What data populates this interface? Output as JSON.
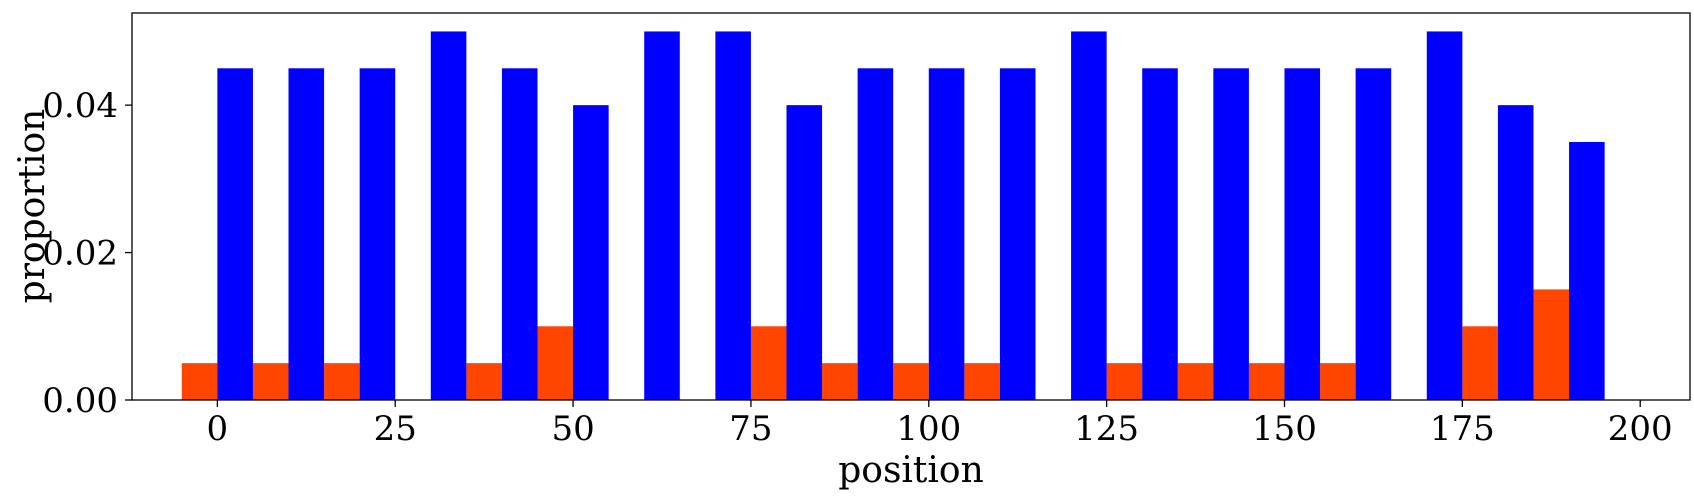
{
  "chart_data": {
    "type": "bar",
    "title": "",
    "xlabel": "position",
    "ylabel": "proportion",
    "xlim": [
      -12,
      207
    ],
    "ylim": [
      0,
      0.0525
    ],
    "grid": false,
    "legend": "none",
    "bin_width": 10,
    "xticks": [
      0,
      25,
      50,
      75,
      100,
      125,
      150,
      175,
      200
    ],
    "xtick_labels": [
      "0",
      "25",
      "50",
      "75",
      "100",
      "125",
      "150",
      "175",
      "200"
    ],
    "yticks": [
      0.0,
      0.02,
      0.04
    ],
    "ytick_labels": [
      "0.00",
      "0.02",
      "0.04"
    ],
    "bin_starts": [
      0,
      10,
      20,
      30,
      40,
      50,
      60,
      70,
      80,
      90,
      100,
      110,
      120,
      130,
      140,
      150,
      160,
      170,
      180,
      190
    ],
    "series": [
      {
        "color": "#FF4500",
        "values": [
          0.005,
          0.005,
          0.005,
          0.0,
          0.005,
          0.01,
          0.0,
          0.0,
          0.01,
          0.005,
          0.005,
          0.005,
          0.0,
          0.005,
          0.005,
          0.005,
          0.005,
          0.0,
          0.01,
          0.015
        ]
      },
      {
        "color": "#0000FF",
        "values": [
          0.045,
          0.045,
          0.045,
          0.05,
          0.045,
          0.04,
          0.05,
          0.05,
          0.04,
          0.045,
          0.045,
          0.045,
          0.05,
          0.045,
          0.045,
          0.045,
          0.045,
          0.05,
          0.04,
          0.035
        ]
      }
    ]
  }
}
